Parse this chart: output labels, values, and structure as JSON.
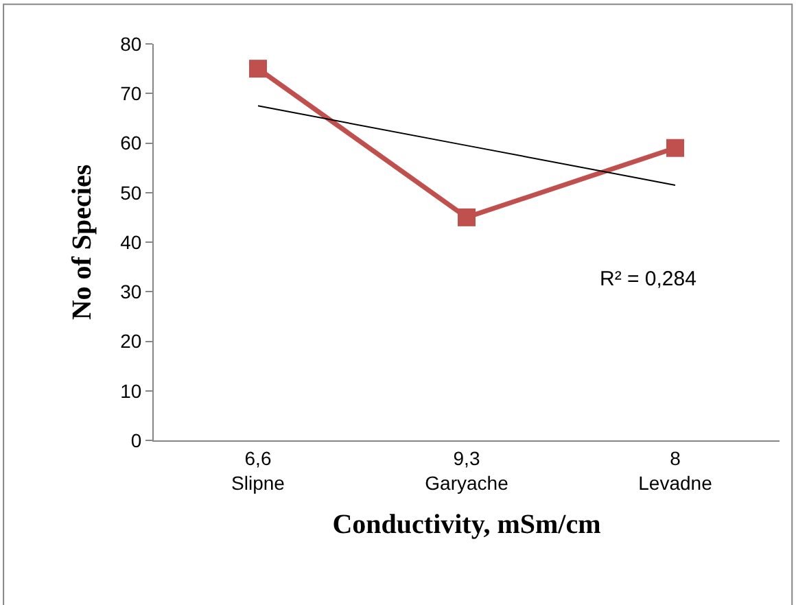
{
  "chart_data": {
    "type": "line",
    "xlabel": "Conductivity, mSm/cm",
    "ylabel": "No of Species",
    "categories": [
      "6,6\nSlipne",
      "9,3\nGaryache",
      "8\nLevadne"
    ],
    "series": [
      {
        "color": "#c0504d",
        "values": [
          75,
          45,
          59
        ],
        "marker": "square"
      },
      {
        "type": "line",
        "color": "#000000",
        "values": [
          67.5,
          59.5,
          51.5
        ],
        "marker": "none"
      }
    ],
    "ylim": [
      0,
      80
    ],
    "yticks": [
      0,
      10,
      20,
      30,
      40,
      50,
      60,
      70,
      80
    ],
    "annotations": [
      "R² = 0,284"
    ]
  }
}
